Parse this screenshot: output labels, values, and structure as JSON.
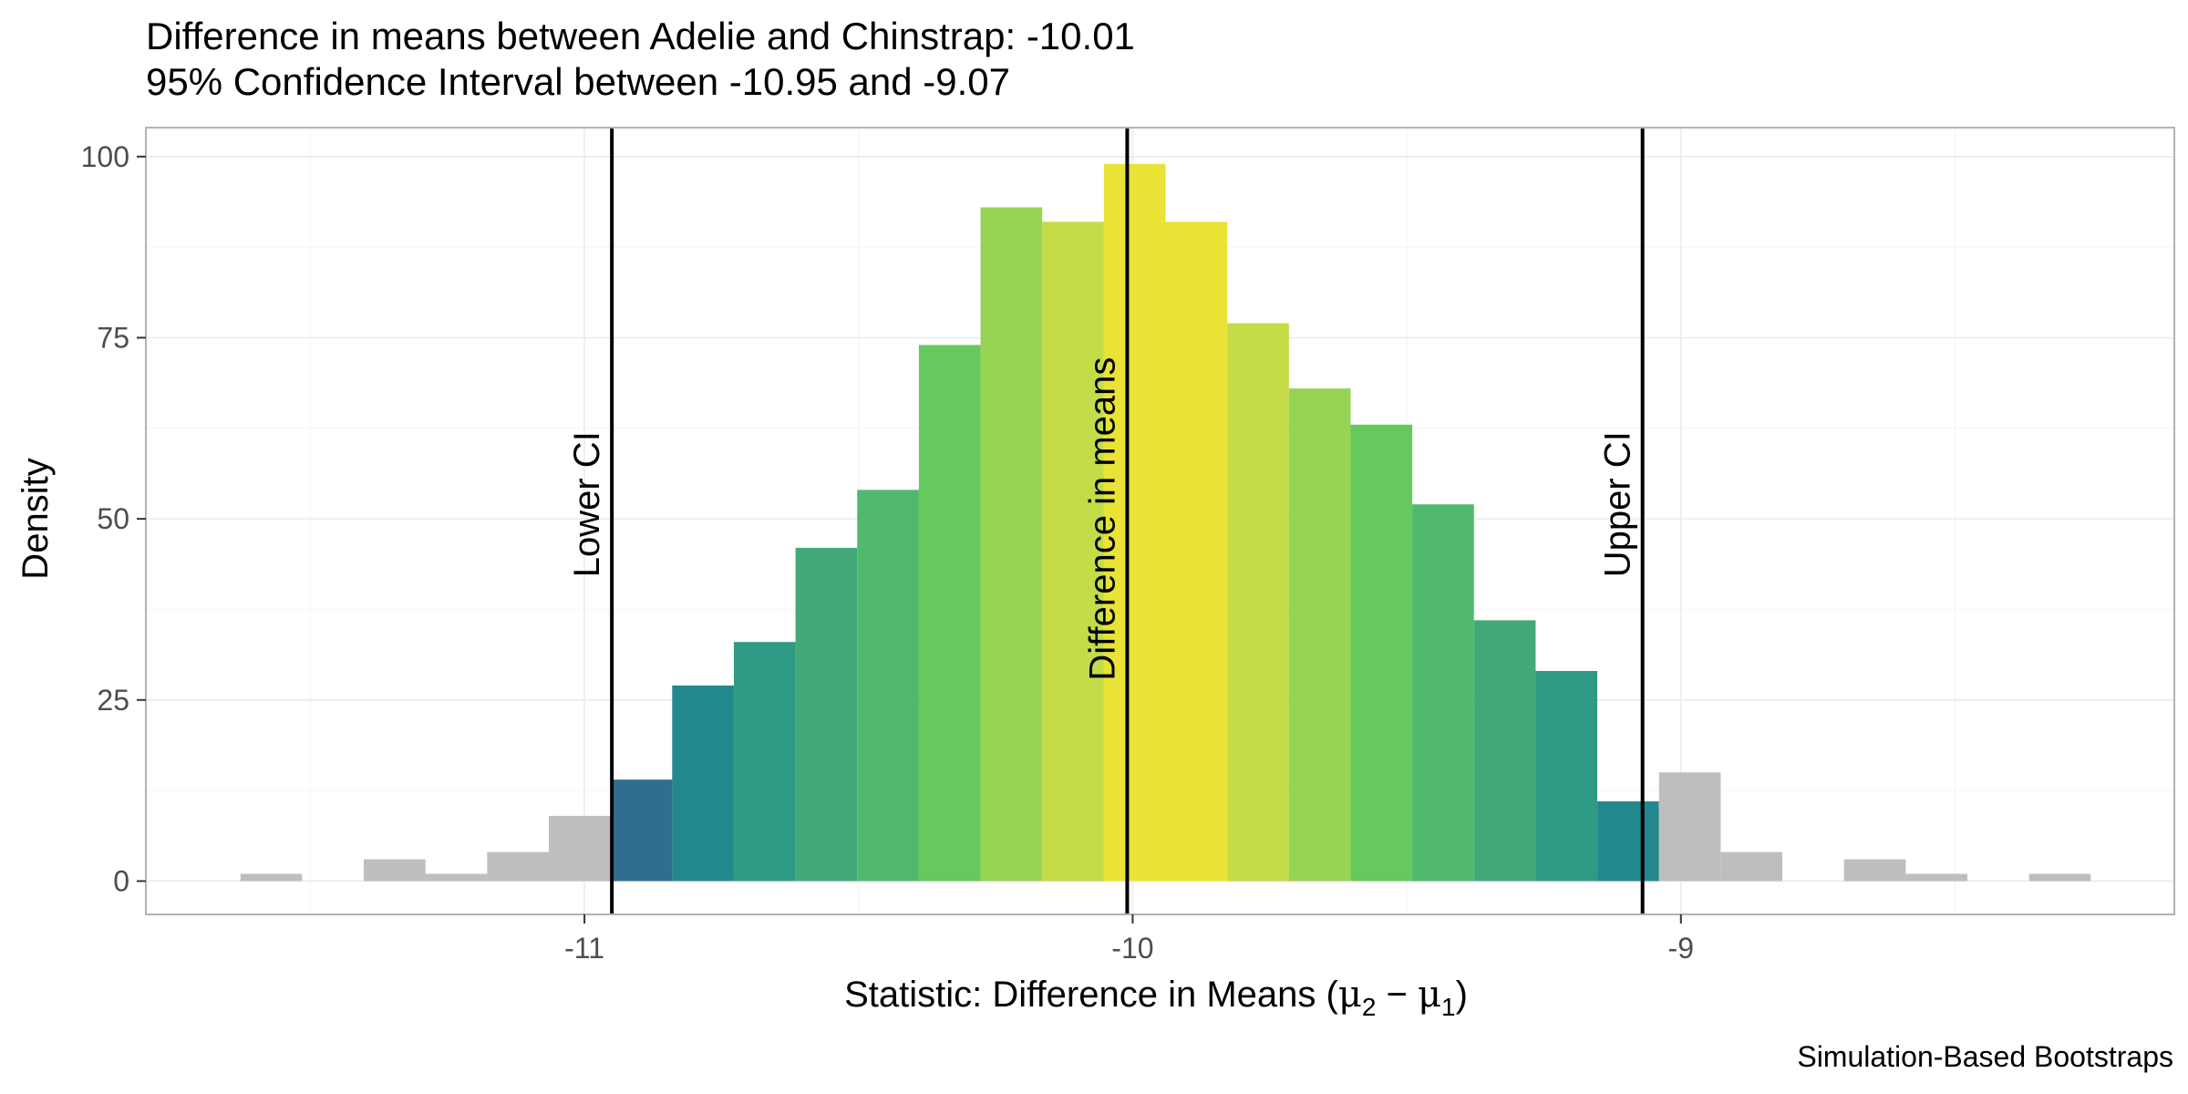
{
  "chart_data": {
    "type": "histogram",
    "title": "Difference in means between Adelie and Chinstrap: -10.01",
    "subtitle": "95% Confidence Interval between -10.95 and -9.07",
    "xlabel": {
      "main": "Statistic: Difference in Means (",
      "mu": "μ",
      "sub2": "2",
      "minus": " − ",
      "sub1": "1",
      "close": ")"
    },
    "ylabel": "Density",
    "caption": "Simulation-Based Bootstraps",
    "xlim": [
      -11.8,
      -8.1
    ],
    "ylim": [
      -4.6,
      104
    ],
    "x_ticks": [
      {
        "value": -11,
        "label": "-11"
      },
      {
        "value": -10,
        "label": "-10"
      },
      {
        "value": -9,
        "label": "-9"
      }
    ],
    "y_ticks": [
      {
        "value": 0,
        "label": "0"
      },
      {
        "value": 25,
        "label": "25"
      },
      {
        "value": 50,
        "label": "50"
      },
      {
        "value": 75,
        "label": "75"
      },
      {
        "value": 100,
        "label": "100"
      }
    ],
    "grid": true,
    "bin_width": 0.1125,
    "bins": [
      {
        "x0": -11.74,
        "y": 0,
        "color": "#bebebe"
      },
      {
        "x0": -11.6275,
        "y": 1,
        "color": "#bebebe"
      },
      {
        "x0": -11.515,
        "y": 0,
        "color": "#bebebe"
      },
      {
        "x0": -11.4025,
        "y": 3,
        "color": "#bebebe"
      },
      {
        "x0": -11.29,
        "y": 1,
        "color": "#bebebe"
      },
      {
        "x0": -11.1775,
        "y": 4,
        "color": "#bebebe"
      },
      {
        "x0": -11.065,
        "y": 9,
        "color": "#bebebe"
      },
      {
        "x0": -10.9525,
        "y": 14,
        "color": "#bebebe"
      },
      {
        "x0": -10.84,
        "y": 27,
        "color": "#23888e"
      },
      {
        "x0": -10.7275,
        "y": 33,
        "color": "#2f9b84"
      },
      {
        "x0": -10.615,
        "y": 46,
        "color": "#41a97a"
      },
      {
        "x0": -10.5025,
        "y": 54,
        "color": "#50b96e"
      },
      {
        "x0": -10.39,
        "y": 74,
        "color": "#66c95e"
      },
      {
        "x0": -10.2775,
        "y": 93,
        "color": "#98d454"
      },
      {
        "x0": -10.165,
        "y": 91,
        "color": "#c3dc48"
      },
      {
        "x0": -10.0525,
        "y": 99,
        "color": "#e8e335"
      },
      {
        "x0": -9.94,
        "y": 91,
        "color": "#e8e335"
      },
      {
        "x0": -9.8275,
        "y": 77,
        "color": "#c3dc48"
      },
      {
        "x0": -9.715,
        "y": 68,
        "color": "#98d454"
      },
      {
        "x0": -9.6025,
        "y": 63,
        "color": "#66c95e"
      },
      {
        "x0": -9.49,
        "y": 52,
        "color": "#50b96e"
      },
      {
        "x0": -9.3775,
        "y": 36,
        "color": "#41a97a"
      },
      {
        "x0": -9.265,
        "y": 29,
        "color": "#2f9b84"
      },
      {
        "x0": -9.1525,
        "y": 11,
        "color": "#23888e"
      },
      {
        "x0": -9.04,
        "y": 15,
        "color": "#bebebe"
      },
      {
        "x0": -8.9275,
        "y": 4,
        "color": "#bebebe"
      },
      {
        "x0": -8.815,
        "y": 0,
        "color": "#bebebe"
      },
      {
        "x0": -8.7025,
        "y": 3,
        "color": "#bebebe"
      },
      {
        "x0": -8.59,
        "y": 1,
        "color": "#bebebe"
      },
      {
        "x0": -8.4775,
        "y": 0,
        "color": "#bebebe"
      },
      {
        "x0": -8.365,
        "y": 1,
        "color": "#bebebe"
      }
    ],
    "partial_bin": {
      "x0": -10.95,
      "x1": -10.84,
      "y": 14,
      "color": "#2f6e8f"
    },
    "vlines": [
      {
        "x": -10.95,
        "label": "Lower CI",
        "label_y": 52
      },
      {
        "x": -10.01,
        "label": "Difference in means",
        "label_y": 50
      },
      {
        "x": -9.07,
        "label": "Upper CI",
        "label_y": 52
      }
    ],
    "colors": {
      "panel_border": "#b3b3b3",
      "grid_major": "#ebebeb",
      "grid_minor": "#f5f5f5",
      "vline": "#000000",
      "out_of_ci": "#bebebe"
    }
  }
}
